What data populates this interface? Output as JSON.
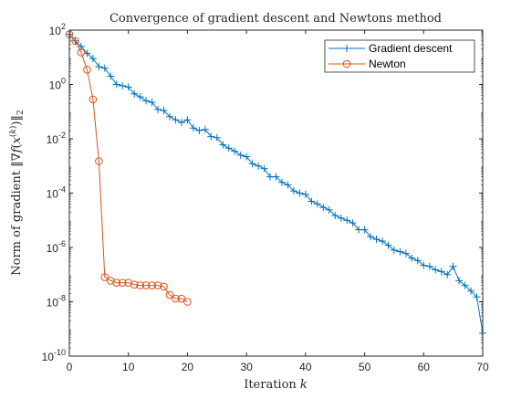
{
  "chart_data": {
    "type": "line",
    "title": "Convergence of gradient descent and Newtons method",
    "xlabel": "Iteration k",
    "ylabel": "Norm of gradient ||∇f(x(k))||2",
    "xlim": [
      0,
      70
    ],
    "ylim_exponent": [
      -10,
      2
    ],
    "yscale": "log",
    "x_ticks": [
      "0",
      "10",
      "20",
      "30",
      "40",
      "50",
      "60",
      "70"
    ],
    "y_ticks": [
      {
        "base": "10",
        "exp": "2"
      },
      {
        "base": "10",
        "exp": "0"
      },
      {
        "base": "10",
        "exp": "-2"
      },
      {
        "base": "10",
        "exp": "-4"
      },
      {
        "base": "10",
        "exp": "-6"
      },
      {
        "base": "10",
        "exp": "-8"
      },
      {
        "base": "10",
        "exp": "-10"
      }
    ],
    "legend_position": "top-right",
    "series": [
      {
        "name": "Gradient descent",
        "color": "#0072BD",
        "marker": "plus",
        "x": [
          0,
          1,
          2,
          3,
          4,
          5,
          6,
          7,
          8,
          9,
          10,
          11,
          12,
          13,
          14,
          15,
          16,
          17,
          18,
          19,
          20,
          21,
          22,
          23,
          24,
          25,
          26,
          27,
          28,
          29,
          30,
          31,
          32,
          33,
          34,
          35,
          36,
          37,
          38,
          39,
          40,
          41,
          42,
          43,
          44,
          45,
          46,
          47,
          48,
          49,
          50,
          51,
          52,
          53,
          54,
          55,
          56,
          57,
          58,
          59,
          60,
          61,
          62,
          63,
          64,
          65,
          66,
          67,
          68,
          69,
          70
        ],
        "y": [
          70,
          40,
          25,
          14,
          9,
          4.5,
          4,
          2,
          1,
          0.9,
          0.8,
          0.45,
          0.35,
          0.25,
          0.22,
          0.12,
          0.11,
          0.065,
          0.05,
          0.04,
          0.05,
          0.025,
          0.02,
          0.022,
          0.012,
          0.011,
          0.006,
          0.0045,
          0.0035,
          0.0025,
          0.0022,
          0.0012,
          0.001,
          0.0008,
          0.0004,
          0.0004,
          0.00025,
          0.0002,
          0.00012,
          0.0001,
          9e-05,
          5e-05,
          4e-05,
          3e-05,
          2.4e-05,
          1.5e-05,
          1.2e-05,
          1e-05,
          8e-06,
          4.5e-06,
          4.5e-06,
          2.5e-06,
          2e-06,
          1.7e-06,
          1.2e-06,
          8e-07,
          7e-07,
          6e-07,
          4e-07,
          3.3e-07,
          2.2e-07,
          2e-07,
          1.5e-07,
          1.3e-07,
          1e-07,
          2e-07,
          6e-08,
          4e-08,
          2.5e-08,
          1.5e-08,
          7e-10
        ]
      },
      {
        "name": "Newton",
        "color": "#D95319",
        "marker": "circle",
        "x": [
          0,
          1,
          2,
          3,
          4,
          5,
          6,
          7,
          8,
          9,
          10,
          11,
          12,
          13,
          14,
          15,
          16,
          17,
          18,
          19,
          20
        ],
        "y": [
          70,
          40,
          15,
          3.5,
          0.28,
          0.0015,
          8e-08,
          6e-08,
          5e-08,
          5e-08,
          5e-08,
          4.3e-08,
          4e-08,
          4e-08,
          4e-08,
          4e-08,
          3.6e-08,
          1.8e-08,
          1.3e-08,
          1.3e-08,
          1e-08
        ]
      }
    ]
  }
}
